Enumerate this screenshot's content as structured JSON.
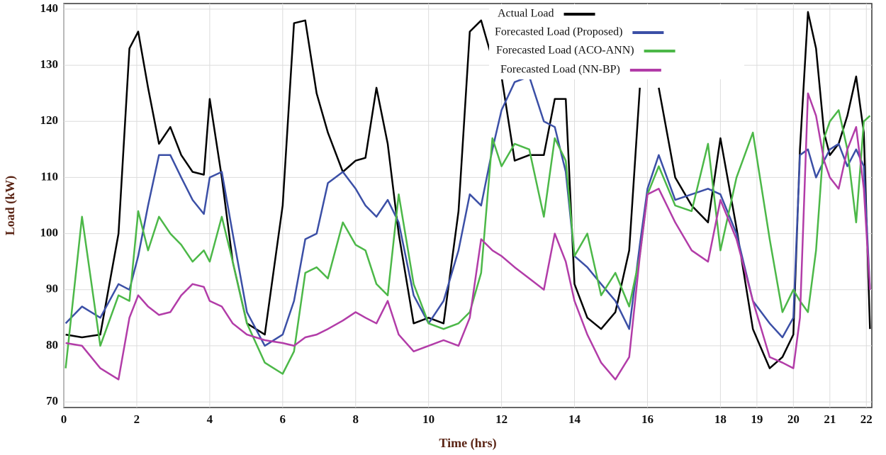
{
  "chart_data": {
    "type": "line",
    "xlabel": "Time (hrs)",
    "ylabel": "Load (kW)",
    "x": [
      0.05,
      0.5,
      1.0,
      1.5,
      1.8,
      2.04,
      2.31,
      2.61,
      2.92,
      3.22,
      3.53,
      3.84,
      4.0,
      4.33,
      4.63,
      5.02,
      5.51,
      6.0,
      6.31,
      6.62,
      6.93,
      7.24,
      7.65,
      8.0,
      8.27,
      8.57,
      8.88,
      9.18,
      9.59,
      10.0,
      10.41,
      10.82,
      11.13,
      11.44,
      11.75,
      12.0,
      12.36,
      12.76,
      13.16,
      13.46,
      13.76,
      14.0,
      14.35,
      14.73,
      15.12,
      15.5,
      15.79,
      16.0,
      16.31,
      16.76,
      17.21,
      17.66,
      18.0,
      18.44,
      18.89,
      19.35,
      19.7,
      20.0,
      20.18,
      20.4,
      20.62,
      20.84,
      21.0,
      21.24,
      21.48,
      21.72,
      21.93,
      22.1
    ],
    "series": [
      {
        "name": "Actual Load",
        "color": "#000000",
        "values": [
          82,
          81.5,
          82,
          100,
          133,
          136,
          126,
          116,
          119,
          114,
          111,
          110.5,
          124,
          110,
          95,
          84,
          82,
          105,
          137.5,
          138,
          125,
          118,
          111,
          113,
          113.5,
          126,
          116,
          100,
          84,
          85,
          84,
          104,
          136,
          138,
          131,
          128,
          113,
          114,
          114,
          124,
          124,
          91,
          85,
          83,
          86,
          97,
          126,
          null,
          126,
          110,
          105,
          102,
          117,
          101,
          83,
          76,
          78,
          82,
          115,
          139.5,
          133,
          118,
          114,
          116,
          121,
          128,
          118,
          83
        ]
      },
      {
        "name": "Forecasted Load (Proposed)",
        "color": "#3b4fa6",
        "values": [
          84,
          87,
          85,
          91,
          90,
          96,
          105,
          114,
          114,
          110,
          106,
          103.5,
          110,
          111,
          100,
          86,
          80,
          82,
          88,
          99,
          100,
          109,
          111,
          108,
          105,
          103,
          106,
          102,
          89,
          84,
          88,
          97,
          107,
          105,
          115,
          122,
          127,
          128,
          120,
          119,
          111,
          96,
          94,
          91,
          88,
          83,
          98,
          108,
          114,
          106,
          107,
          108,
          107,
          100,
          88,
          84,
          81.5,
          85,
          114,
          115,
          110,
          113,
          115,
          116,
          112,
          115,
          112,
          90
        ]
      },
      {
        "name": "Forecasted Load (ACO-ANN)",
        "color": "#4cb848",
        "values": [
          76,
          103,
          80,
          89,
          88,
          104,
          97,
          103,
          100,
          98,
          95,
          97,
          95,
          103,
          95,
          84,
          77,
          75,
          79,
          93,
          94,
          92,
          102,
          98,
          97,
          91,
          89,
          107,
          91,
          84,
          83,
          84,
          86,
          93,
          117,
          112,
          116,
          115,
          103,
          117,
          113,
          96,
          100,
          89,
          93,
          87,
          96,
          107,
          112,
          105,
          104,
          116,
          97,
          110,
          118,
          99,
          86,
          90,
          88,
          86,
          97,
          117,
          120,
          122,
          115,
          102,
          120,
          121
        ]
      },
      {
        "name": "Forecasted Load (NN-BP)",
        "color": "#b23ca8",
        "values": [
          80.5,
          80,
          76,
          74,
          85,
          89,
          87,
          85.5,
          86,
          89,
          91,
          90.5,
          88,
          87,
          84,
          82,
          81,
          80.5,
          80,
          81.5,
          82,
          83,
          84.5,
          86,
          85,
          84,
          88,
          82,
          79,
          80,
          81,
          80,
          85,
          99,
          97,
          96,
          94,
          92,
          90,
          100,
          95,
          88,
          82,
          77,
          74,
          78,
          96,
          107,
          108,
          102,
          97,
          95,
          106,
          99,
          88,
          78,
          77,
          76,
          85,
          125,
          121,
          113,
          110,
          108,
          115,
          119,
          108,
          90
        ]
      }
    ],
    "xlim": [
      0,
      22.15
    ],
    "xticks": [
      0,
      2,
      4,
      6,
      8,
      10,
      12,
      14,
      16,
      18,
      19,
      20,
      21,
      22
    ],
    "ylim": [
      69,
      141
    ],
    "yticks": [
      70,
      80,
      90,
      100,
      110,
      120,
      130,
      140
    ],
    "grid": true,
    "legend": "top"
  }
}
